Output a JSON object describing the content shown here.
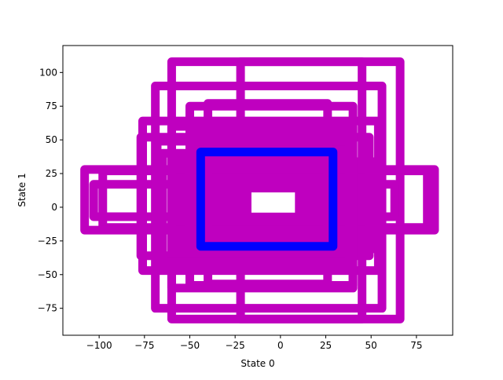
{
  "chart_data": {
    "type": "line",
    "xlabel": "State 0",
    "ylabel": "State 1",
    "xlim": [
      -120,
      95
    ],
    "ylim": [
      -95,
      120
    ],
    "x_ticks": [
      -100,
      -75,
      -50,
      -25,
      0,
      25,
      50,
      75
    ],
    "x_tick_labels": [
      "−100",
      "−75",
      "−50",
      "−25",
      "0",
      "25",
      "50",
      "75"
    ],
    "y_ticks": [
      -75,
      -50,
      -25,
      0,
      25,
      50,
      75,
      100
    ],
    "y_tick_labels": [
      "−75",
      "−50",
      "−25",
      "0",
      "25",
      "50",
      "75",
      "100"
    ],
    "grid": false,
    "series": [
      {
        "color": "#bf00bf",
        "rectangles": [
          {
            "x": [
              -22,
              66
            ],
            "y": [
              -83,
              108
            ]
          },
          {
            "x": [
              -60,
              45
            ],
            "y": [
              -83,
              108
            ]
          },
          {
            "x": [
              -98,
              81
            ],
            "y": [
              -15,
              27
            ]
          },
          {
            "x": [
              -108,
              85
            ],
            "y": [
              -17,
              28
            ]
          },
          {
            "x": [
              -103,
              63
            ],
            "y": [
              -7,
              17
            ]
          },
          {
            "x": [
              -69,
              56
            ],
            "y": [
              -75,
              90
            ]
          },
          {
            "x": [
              -76,
              54
            ],
            "y": [
              -47,
              64
            ]
          },
          {
            "x": [
              -77,
              49
            ],
            "y": [
              -36,
              52
            ]
          },
          {
            "x": [
              -68,
              38
            ],
            "y": [
              -46,
              49
            ]
          },
          {
            "x": [
              -50,
              40
            ],
            "y": [
              -58,
              75
            ]
          },
          {
            "x": [
              -40,
              26
            ],
            "y": [
              -57,
              77
            ]
          },
          {
            "x": [
              -60,
              40
            ],
            "y": [
              -60,
              60
            ]
          },
          {
            "x": [
              -65,
              38
            ],
            "y": [
              -40,
              40
            ]
          }
        ],
        "filled_regions": [
          {
            "x": [
              -45,
              30
            ],
            "y": [
              -30,
              42
            ]
          },
          {
            "x": [
              -50,
              38
            ],
            "y": [
              -48,
              60
            ]
          },
          {
            "x": [
              -60,
              55
            ],
            "y": [
              -34,
              37
            ]
          }
        ]
      },
      {
        "color": "#0000ff",
        "rectangles": [
          {
            "x": [
              -44,
              29
            ],
            "y": [
              -29,
              41
            ]
          }
        ]
      }
    ],
    "hole": {
      "x": [
        -16,
        8
      ],
      "y": [
        -4,
        11
      ]
    }
  }
}
